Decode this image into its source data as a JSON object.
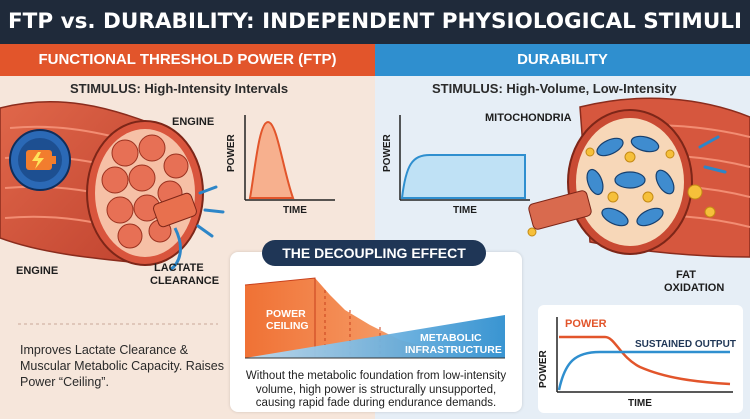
{
  "title": "FTP vs. DURABILITY: INDEPENDENT PHYSIOLOGICAL STIMULI",
  "ftp": {
    "header": "FUNCTIONAL THRESHOLD POWER (FTP)",
    "stimulus": "STIMULUS: High-Intensity Intervals",
    "label_engine_top": "ENGINE",
    "label_engine_left": "ENGINE",
    "label_lactate_1": "LACTATE",
    "label_lactate_2": "CLEARANCE",
    "chart_ylabel": "POWER",
    "chart_xlabel": "TIME",
    "summary": "Improves Lactate Clearance & Muscular Metabolic Capacity. Raises Power “Ceiling”."
  },
  "durability": {
    "header": "DURABILITY",
    "stimulus": "STIMULUS: High-Volume, Low-Intensity",
    "label_mito": "MITOCHONDRIA",
    "label_fat_1": "FAT",
    "label_fat_2": "OXIDATION",
    "chart_ylabel": "POWER",
    "chart_xlabel": "TIME"
  },
  "decoupling": {
    "title": "THE DECOUPLING EFFECT",
    "ceiling_1": "POWER",
    "ceiling_2": "CEILING",
    "infra_1": "METABOLIC",
    "infra_2": "INFRASTRUCTURE",
    "text": "Without the metabolic foundation from low-intensity volume, high power is structurally unsupported, causing rapid fade during endurance demands."
  },
  "sustained": {
    "power_label": "POWER",
    "output_label": "SUSTAINED OUTPUT",
    "ylabel": "POWER",
    "xlabel": "TIME"
  },
  "colors": {
    "ftp_accent": "#e2552b",
    "durability_accent": "#2f8fcf",
    "title_bg": "#1f2a3a",
    "decoupling_bg": "#1f3656"
  }
}
